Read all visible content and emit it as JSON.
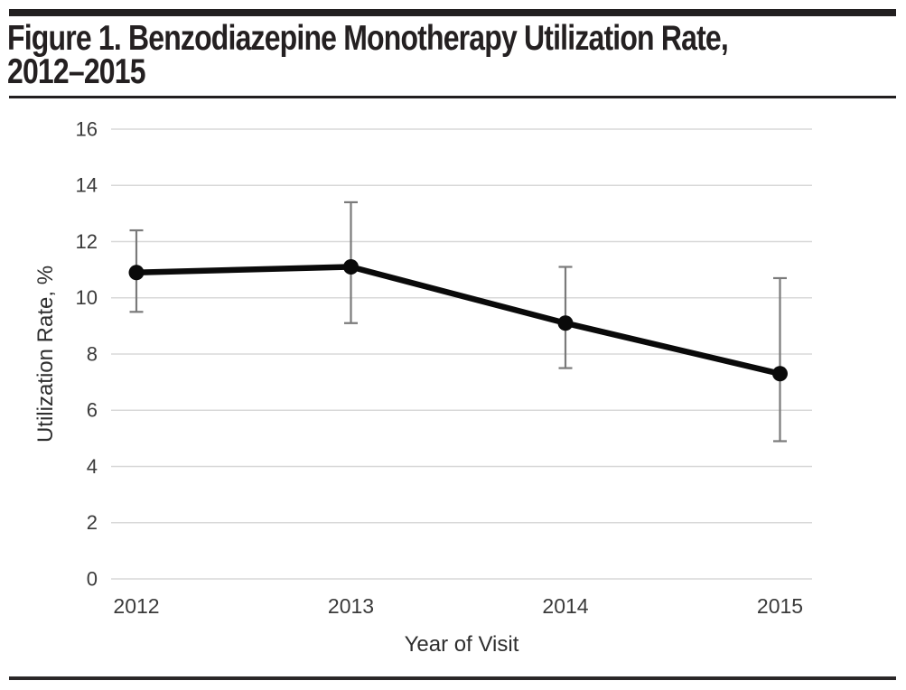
{
  "page": {
    "background": "#ffffff",
    "accent_bar_color": "#221f20"
  },
  "figure": {
    "title_line1": "Figure 1. Benzodiazepine Monotherapy Utilization Rate,",
    "title_line2": "2012–2015"
  },
  "chart_data": {
    "type": "line",
    "title": "Figure 1. Benzodiazepine Monotherapy Utilization Rate, 2012–2015",
    "categories": [
      "2012",
      "2013",
      "2014",
      "2015"
    ],
    "series": [
      {
        "name": "Benzodiazepine monotherapy utilization rate",
        "values": [
          10.9,
          11.1,
          9.1,
          7.3
        ],
        "ci_lower": [
          9.5,
          9.1,
          7.5,
          4.9
        ],
        "ci_upper": [
          12.4,
          13.4,
          11.1,
          10.7
        ]
      }
    ],
    "xlabel": "Year of Visit",
    "ylabel": "Utilization Rate, %",
    "ylim": [
      0,
      16
    ],
    "yticks": [
      0,
      2,
      4,
      6,
      8,
      10,
      12,
      14,
      16
    ],
    "grid": "horizontal-only",
    "legend": "none",
    "marker": "filled-circle",
    "error_bars": "vertical-whiskers-with-caps",
    "colors": {
      "line": "#0a0a0a",
      "marker": "#0a0a0a",
      "error_bar": "#7a7a7a",
      "gridline": "#d8d8d8",
      "tick_label": "#3a3a3a",
      "axis_title": "#2e2e2e"
    }
  }
}
